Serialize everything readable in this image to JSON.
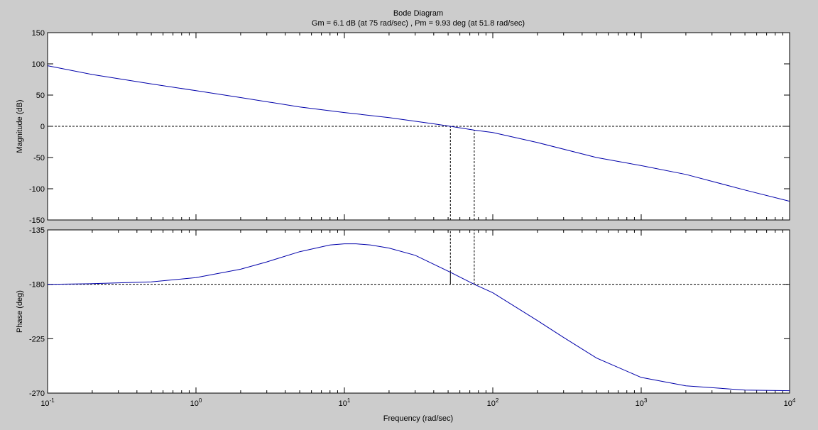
{
  "chart_data": [
    {
      "type": "line",
      "panel": "magnitude",
      "title": "Bode Diagram",
      "subtitle": "Gm = 6.1 dB (at 75 rad/sec) ,  Pm = 9.93 deg (at 51.8 rad/sec)",
      "ylabel": "Magnitude (dB)",
      "xscale": "log",
      "xlim": [
        0.1,
        10000
      ],
      "ylim": [
        -150,
        150
      ],
      "yticks": [
        -150,
        -100,
        -50,
        0,
        50,
        100,
        150
      ],
      "ytick_labels": [
        "-150",
        "-100",
        "-50",
        "0",
        "50",
        "100",
        "150"
      ],
      "series": [
        {
          "x": [
            0.1,
            0.2,
            0.5,
            1,
            2,
            5,
            10,
            20,
            40,
            51.8,
            75,
            100,
            200,
            500,
            1000,
            2000,
            5000,
            10000
          ],
          "values": [
            97,
            83,
            68,
            57,
            46,
            31,
            22,
            14,
            4,
            0,
            -6.1,
            -10,
            -26,
            -50,
            -63,
            -77,
            -102,
            -120
          ]
        }
      ],
      "reference_lines": [
        {
          "axis": "y",
          "value": 0,
          "style": "dashed"
        },
        {
          "axis": "x",
          "value": 51.8,
          "from": -150,
          "to": 0,
          "style": "dashed"
        },
        {
          "axis": "x",
          "value": 75,
          "from": -150,
          "to": -6.1,
          "style": "dashed"
        }
      ],
      "grid": false
    },
    {
      "type": "line",
      "panel": "phase",
      "ylabel": "Phase (deg)",
      "xlabel": "Frequency  (rad/sec)",
      "xscale": "log",
      "xlim": [
        0.1,
        10000
      ],
      "ylim": [
        -270,
        -135
      ],
      "yticks": [
        -270,
        -225,
        -180,
        -135
      ],
      "ytick_labels": [
        "-270",
        "-225",
        "-180",
        "-135"
      ],
      "xticks": [
        0.1,
        1,
        10,
        100,
        1000,
        10000
      ],
      "xtick_labels": [
        {
          "base": "10",
          "exp": "-1"
        },
        {
          "base": "10",
          "exp": "0"
        },
        {
          "base": "10",
          "exp": "1"
        },
        {
          "base": "10",
          "exp": "2"
        },
        {
          "base": "10",
          "exp": "3"
        },
        {
          "base": "10",
          "exp": "4"
        }
      ],
      "series": [
        {
          "x": [
            0.1,
            0.2,
            0.5,
            1,
            2,
            3,
            5,
            8,
            10,
            12,
            15,
            20,
            30,
            51.8,
            75,
            100,
            200,
            300,
            500,
            1000,
            2000,
            5000,
            10000
          ],
          "values": [
            -180,
            -179.5,
            -178,
            -174.5,
            -167.5,
            -161.5,
            -153,
            -147.5,
            -146.5,
            -146.5,
            -147.5,
            -150,
            -156,
            -170.07,
            -180,
            -187,
            -210,
            -224,
            -241,
            -257,
            -264,
            -267.5,
            -268
          ]
        }
      ],
      "reference_lines": [
        {
          "axis": "y",
          "value": -180,
          "style": "dashed"
        },
        {
          "axis": "x",
          "value": 51.8,
          "from": -180,
          "to": -170.07,
          "style": "solid"
        },
        {
          "axis": "x",
          "value": 51.8,
          "from": -170.07,
          "to": -135,
          "style": "dashed"
        },
        {
          "axis": "x",
          "value": 75,
          "from": -180,
          "to": -135,
          "style": "dashed"
        }
      ],
      "grid": false
    }
  ],
  "colors": {
    "background": "#cccccc",
    "axes_face": "#ffffff",
    "line": "#0000aa",
    "reference": "#000000"
  }
}
